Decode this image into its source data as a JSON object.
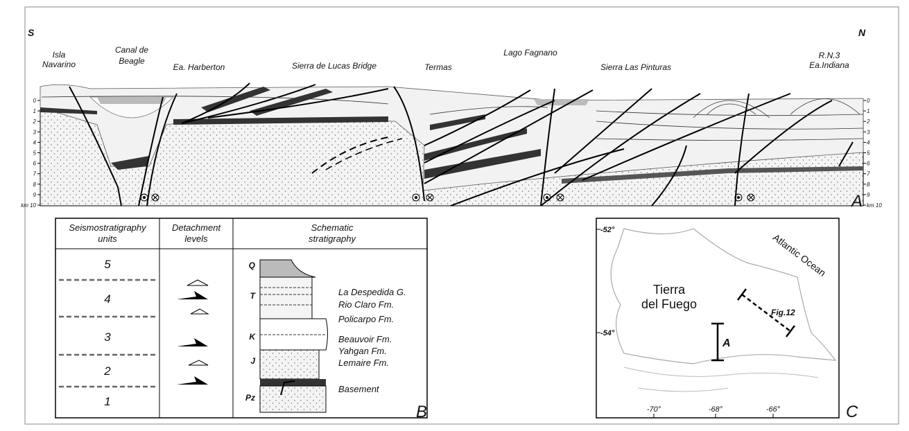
{
  "panel_a": {
    "label": "A",
    "left_end": "S",
    "right_end": "N",
    "places": [
      {
        "lines": [
          "Isla",
          "Navarino"
        ]
      },
      {
        "lines": [
          "Canal de",
          "Beagle"
        ]
      },
      {
        "lines": [
          "Ea. Harberton"
        ]
      },
      {
        "lines": [
          "Sierra de Lucas Bridge"
        ]
      },
      {
        "lines": [
          "Termas"
        ]
      },
      {
        "lines": [
          "Lago Fagnano"
        ]
      },
      {
        "lines": [
          "Sierra Las Pinturas"
        ]
      },
      {
        "lines": [
          "R.N.3",
          "Ea.Indiana"
        ]
      }
    ],
    "depth_ticks": [
      "0",
      "1",
      "2",
      "3",
      "4",
      "5",
      "6",
      "7",
      "8",
      "9",
      "km 10"
    ]
  },
  "panel_b": {
    "label": "B",
    "headers": [
      [
        "Seismostratigraphy",
        "units"
      ],
      [
        "Detachment",
        "levels"
      ],
      [
        "Schematic",
        "stratigraphy"
      ]
    ],
    "units": [
      "5",
      "4",
      "3",
      "2",
      "1"
    ],
    "ages": [
      "Q",
      "T",
      "K",
      "J",
      "Pz"
    ],
    "formations": [
      "La Despedida G.",
      "Rio Claro Fm.",
      "Policarpo Fm.",
      "Beauvoir Fm.",
      "Yahgan Fm.",
      "Lemaire Fm.",
      "Basement"
    ]
  },
  "panel_c": {
    "label": "C",
    "latitudes": [
      "-52°",
      "-54°"
    ],
    "longitudes": [
      "-70°",
      "-68°",
      "-66°"
    ],
    "island": [
      "Tierra",
      "del Fuego"
    ],
    "ocean": "Atlantic  Ocean",
    "section_fig12": "Fig.12",
    "section_a": "A"
  }
}
